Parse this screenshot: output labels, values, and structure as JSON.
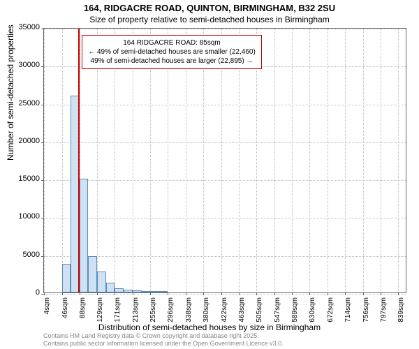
{
  "header": {
    "line1": "164, RIDGACRE ROAD, QUINTON, BIRMINGHAM, B32 2SU",
    "line2": "Size of property relative to semi-detached houses in Birmingham"
  },
  "chart": {
    "type": "histogram",
    "ylabel": "Number of semi-detached properties",
    "xlabel": "Distribution of semi-detached houses by size in Birmingham",
    "ylim": [
      0,
      35000
    ],
    "ytick_step": 5000,
    "y_ticks": [
      0,
      5000,
      10000,
      15000,
      20000,
      25000,
      30000,
      35000
    ],
    "x_ticks": [
      "4sqm",
      "46sqm",
      "88sqm",
      "129sqm",
      "171sqm",
      "213sqm",
      "255sqm",
      "296sqm",
      "338sqm",
      "380sqm",
      "422sqm",
      "463sqm",
      "505sqm",
      "547sqm",
      "589sqm",
      "630sqm",
      "672sqm",
      "714sqm",
      "756sqm",
      "797sqm",
      "839sqm"
    ],
    "x_tick_positions": [
      4,
      46,
      88,
      129,
      171,
      213,
      255,
      296,
      338,
      380,
      422,
      463,
      505,
      547,
      589,
      630,
      672,
      714,
      756,
      797,
      839
    ],
    "x_range": [
      4,
      860
    ],
    "bars": [
      {
        "x_start": 46,
        "x_end": 67,
        "value": 3800
      },
      {
        "x_start": 67,
        "x_end": 88,
        "value": 26000
      },
      {
        "x_start": 88,
        "x_end": 108,
        "value": 15000
      },
      {
        "x_start": 108,
        "x_end": 129,
        "value": 4800
      },
      {
        "x_start": 129,
        "x_end": 150,
        "value": 2800
      },
      {
        "x_start": 150,
        "x_end": 171,
        "value": 1300
      },
      {
        "x_start": 171,
        "x_end": 192,
        "value": 600
      },
      {
        "x_start": 192,
        "x_end": 213,
        "value": 400
      },
      {
        "x_start": 213,
        "x_end": 234,
        "value": 250
      },
      {
        "x_start": 234,
        "x_end": 255,
        "value": 150
      },
      {
        "x_start": 255,
        "x_end": 276,
        "value": 100
      },
      {
        "x_start": 276,
        "x_end": 296,
        "value": 80
      }
    ],
    "bar_fill": "#cfe2f3",
    "bar_stroke": "#5b8db8",
    "marker": {
      "x": 85,
      "color": "#cc0000"
    },
    "background_color": "#ffffff",
    "grid_color": "#bbbbbb",
    "axis_color": "#666666",
    "label_fontsize": 12,
    "tick_fontsize": 10
  },
  "callout": {
    "line1": "164 RIDGACRE ROAD: 85sqm",
    "line2": "← 49% of semi-detached houses are smaller (22,460)",
    "line3": "49% of semi-detached houses are larger (22,895) →",
    "border_color": "#cc0000"
  },
  "footer": {
    "line1": "Contains HM Land Registry data © Crown copyright and database right 2025.",
    "line2": "Contains public sector information licensed under the Open Government Licence v3.0."
  }
}
